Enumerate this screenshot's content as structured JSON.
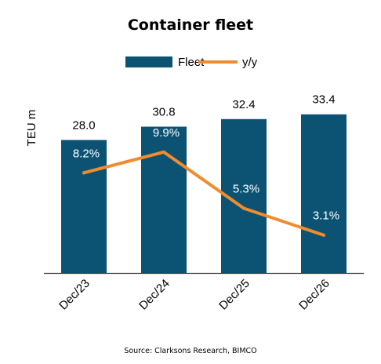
{
  "chart_data": {
    "type": "bar",
    "title": "Container fleet",
    "ylabel": "TEU m",
    "categories": [
      "Dec/23",
      "Dec/24",
      "Dec/25",
      "Dec/26"
    ],
    "series": [
      {
        "name": "Fleet",
        "type": "bar",
        "values": [
          28.0,
          30.8,
          32.4,
          33.4
        ],
        "labels": [
          "28.0",
          "30.8",
          "32.4",
          "33.4"
        ],
        "color": "#0c5373"
      },
      {
        "name": "y/y",
        "type": "line",
        "values": [
          8.2,
          9.9,
          5.3,
          3.1
        ],
        "labels": [
          "8.2%",
          "9.9%",
          "5.3%",
          "3.1%"
        ],
        "color": "#f08c2e"
      }
    ],
    "ylim": [
      0,
      36
    ],
    "ylim_secondary": [
      0,
      14
    ],
    "legend": "top",
    "grid": false,
    "source": "Source: Clarksons Research, BIMCO"
  }
}
